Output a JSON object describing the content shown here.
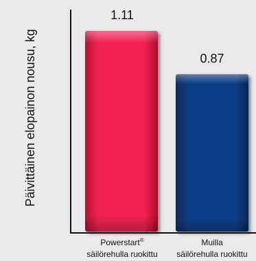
{
  "chart_data": {
    "type": "bar",
    "title": "",
    "xlabel": "",
    "ylabel": "Päivittäinen elopainon nousu, kg",
    "ylim": [
      0,
      1.25
    ],
    "grid": false,
    "categories": [
      {
        "line1": "Powerstart",
        "sup": "®",
        "line2": "säilörehulla ruokittu"
      },
      {
        "line1": "Muilla",
        "sup": "",
        "line2": "säilörehulla ruokittu"
      }
    ],
    "values": [
      1.11,
      0.87
    ],
    "value_labels": [
      "1.11",
      "0.87"
    ],
    "colors": [
      "#f0244e",
      "#0d3e84"
    ]
  }
}
